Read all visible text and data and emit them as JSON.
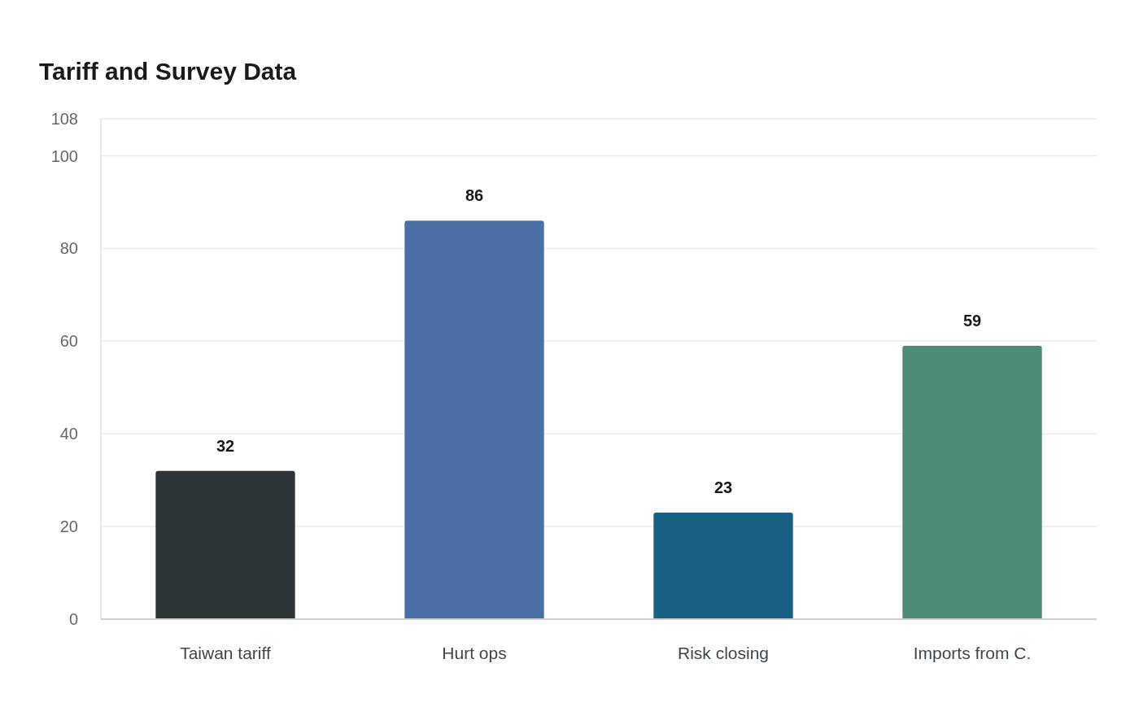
{
  "chart_data": {
    "type": "bar",
    "title": "Tariff and Survey Data",
    "categories": [
      "Taiwan tariff",
      "Hurt ops",
      "Risk closing",
      "Imports from C."
    ],
    "values": [
      32,
      86,
      23,
      59
    ],
    "colors": [
      "#2e3538",
      "#4a6fa5",
      "#186185",
      "#4e8b79"
    ],
    "ylim": [
      0,
      108
    ],
    "yticks": [
      0,
      20,
      40,
      60,
      80,
      100,
      108
    ],
    "grid": "y",
    "data_labels": true
  }
}
